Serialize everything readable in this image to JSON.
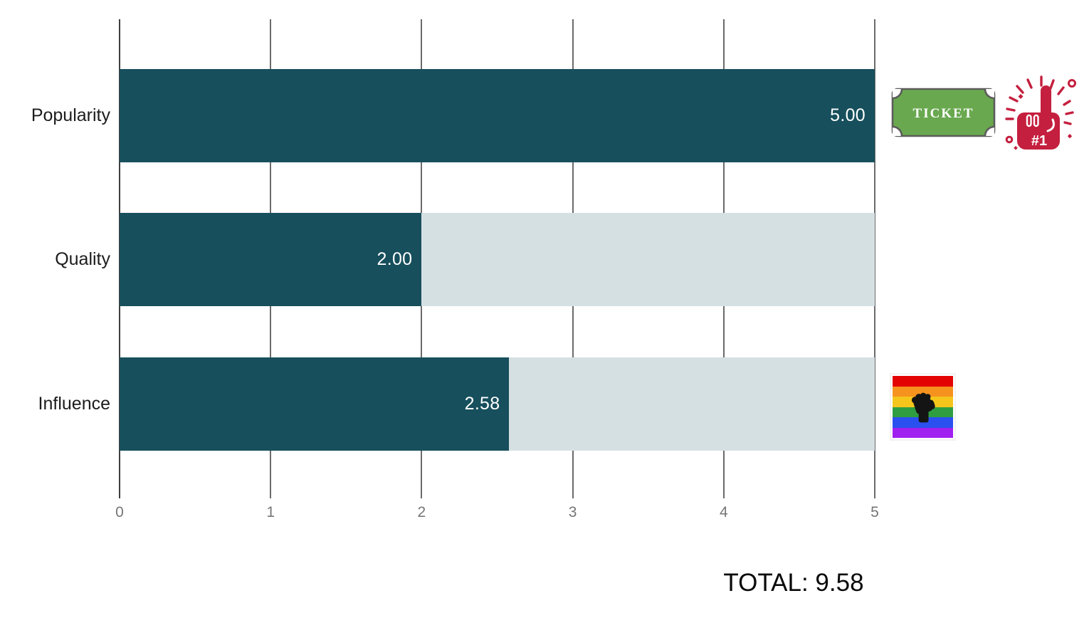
{
  "chart_data": {
    "type": "bar",
    "orientation": "horizontal",
    "title": "",
    "categories": [
      "Popularity",
      "Quality",
      "Influence"
    ],
    "values": [
      5.0,
      2.0,
      2.58
    ],
    "display_values": [
      "5.00",
      "2.00",
      "2.58"
    ],
    "xticks": [
      "0",
      "1",
      "2",
      "3",
      "4",
      "5"
    ],
    "xlim": [
      0,
      5
    ],
    "grid": "vertical",
    "legend": "none",
    "bar_color": "#174f5c",
    "track_color": "#d5e0e3",
    "gridline_color": "#6b6b6b",
    "total": 9.58,
    "total_label": "TOTAL: 9.58"
  },
  "icons": {
    "ticket_badge": {
      "label": "TICKET",
      "fill_color": "#69a84f",
      "border_color": "#5c5c5c",
      "text_color": "#ffffff"
    },
    "foam_finger": {
      "label": "#1",
      "color": "#c41f3e"
    },
    "pride_fist_flag": {
      "stripe_colors": [
        "#e40303",
        "#f6921e",
        "#f5c51c",
        "#2f9e41",
        "#2b50f0",
        "#a020f0"
      ],
      "fist_color": "#141414"
    }
  }
}
